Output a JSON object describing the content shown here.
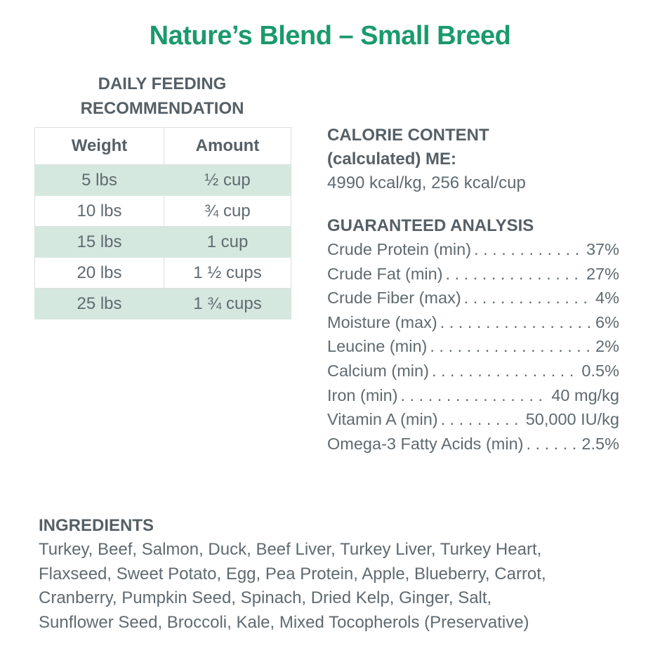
{
  "title": "Nature’s Blend – Small Breed",
  "feeding": {
    "heading_line1": "DAILY FEEDING",
    "heading_line2": "RECOMMENDATION",
    "columns": [
      "Weight",
      "Amount"
    ],
    "rows": [
      {
        "weight": "5 lbs",
        "amount": "½ cup"
      },
      {
        "weight": "10 lbs",
        "amount": "¾ cup"
      },
      {
        "weight": "15 lbs",
        "amount": "1 cup"
      },
      {
        "weight": "20 lbs",
        "amount": "1 ½ cups"
      },
      {
        "weight": "25 lbs",
        "amount": "1 ¾ cups"
      }
    ]
  },
  "calorie": {
    "heading_line1": "CALORIE CONTENT",
    "heading_line2": "(calculated) ME:",
    "value": "4990 kcal/kg, 256 kcal/cup"
  },
  "analysis": {
    "heading": "GUARANTEED ANALYSIS",
    "items": [
      {
        "label": "Crude Protein (min)",
        "value": "37%"
      },
      {
        "label": "Crude Fat (min)",
        "value": "27%"
      },
      {
        "label": "Crude Fiber (max)",
        "value": "4%"
      },
      {
        "label": "Moisture (max)",
        "value": "6%"
      },
      {
        "label": "Leucine (min)",
        "value": "2%"
      },
      {
        "label": "Calcium (min)",
        "value": "0.5%"
      },
      {
        "label": "Iron (min)",
        "value": "40 mg/kg"
      },
      {
        "label": "Vitamin A (min)",
        "value": "50,000 IU/kg"
      },
      {
        "label": "Omega-3 Fatty Acids (min)",
        "value": "2.5%"
      }
    ]
  },
  "ingredients": {
    "heading": "INGREDIENTS",
    "lines": [
      "Turkey, Beef, Salmon, Duck, Beef Liver, Turkey Liver, Turkey Heart,",
      "Flaxseed, Sweet Potato, Egg, Pea Protein, Apple, Blueberry, Carrot,",
      "Cranberry, Pumpkin Seed, Spinach, Dried Kelp, Ginger, Salt,",
      "Sunflower Seed, Broccoli, Kale, Mixed Tocopherols (Preservative)"
    ]
  },
  "colors": {
    "title_green": "#1a9a6c",
    "row_shade": "#d5e8df",
    "text_gray": "#5f6a70"
  }
}
